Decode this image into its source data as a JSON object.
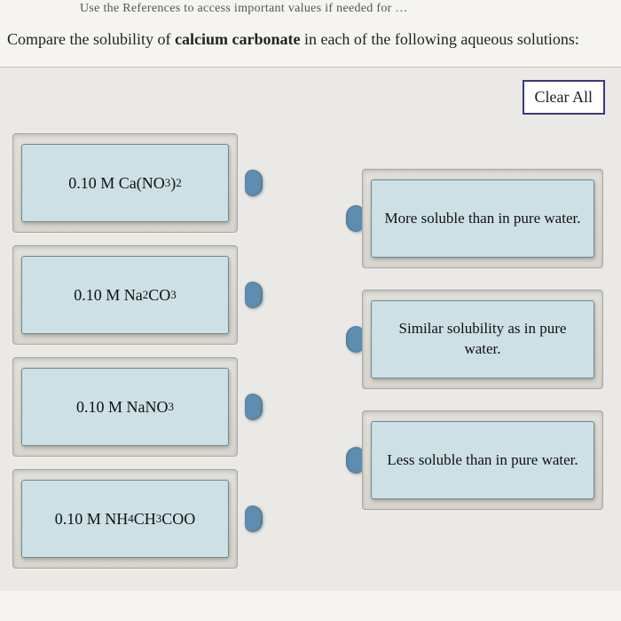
{
  "header_hint": "Use the References to access important values if needed for …",
  "prompt_prefix": "Compare the solubility of ",
  "prompt_bold": "calcium carbonate",
  "prompt_suffix": " in each of the following aqueous solutions:",
  "clear_button": "Clear All",
  "compounds": [
    {
      "html": "0.10 M Ca(NO<sub>3</sub>)<sub>2</sub>"
    },
    {
      "html": "0.10 M Na<sub>2</sub>CO<sub>3</sub>"
    },
    {
      "html": "0.10 M NaNO<sub>3</sub>"
    },
    {
      "html": "0.10 M NH<sub>4</sub>CH<sub>3</sub>COO"
    }
  ],
  "targets": [
    {
      "text": "More soluble than in pure water."
    },
    {
      "text": "Similar solubility as in pure water."
    },
    {
      "text": "Less soluble than in pure water."
    }
  ],
  "colors": {
    "page_bg": "#f5f4f0",
    "workspace_bg": "#eae9e5",
    "tile_bg": "#cce0e5",
    "tile_border": "#6d8a90",
    "frame_bg": "#dcdad2",
    "tab": "#5d8db0",
    "clear_border": "#3a3a7a"
  }
}
